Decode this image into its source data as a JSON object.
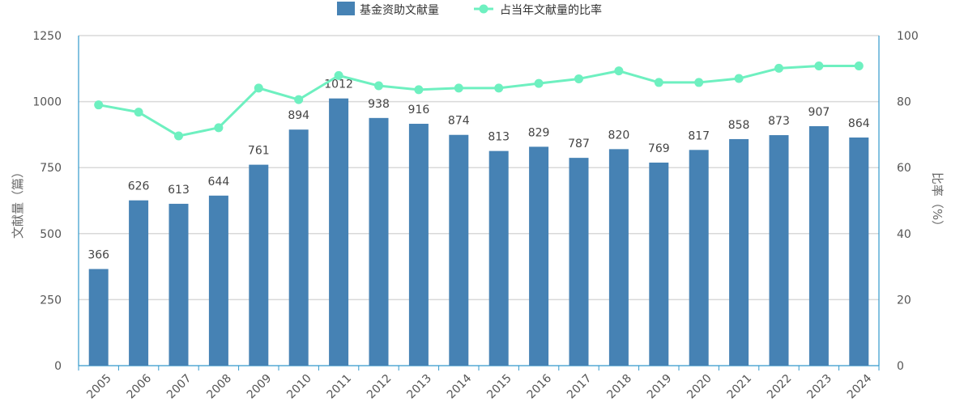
{
  "chart_data": {
    "type": "bar+line",
    "categories": [
      "2005",
      "2006",
      "2007",
      "2008",
      "2009",
      "2010",
      "2011",
      "2012",
      "2013",
      "2014",
      "2015",
      "2016",
      "2017",
      "2018",
      "2019",
      "2020",
      "2021",
      "2022",
      "2023",
      "2024"
    ],
    "series": [
      {
        "name": "基金资助文献量",
        "type": "bar",
        "axis": "left",
        "color": "#4682b4",
        "values": [
          366,
          626,
          613,
          644,
          761,
          894,
          1012,
          938,
          916,
          874,
          813,
          829,
          787,
          820,
          769,
          817,
          858,
          873,
          907,
          864
        ],
        "labels": [
          "366",
          "626",
          "613",
          "644",
          "761",
          "894",
          "1012",
          "938",
          "916",
          "874",
          "813",
          "829",
          "787",
          "820",
          "769",
          "817",
          "858",
          "873",
          "907",
          "864"
        ]
      },
      {
        "name": "占当年文献量的比率",
        "type": "line",
        "axis": "right",
        "color": "#6ef0c0",
        "values": [
          79,
          76.8,
          69.6,
          72.1,
          84.1,
          80.6,
          87.9,
          84.8,
          83.6,
          84.1,
          84.1,
          85.5,
          86.9,
          89.3,
          85.8,
          85.8,
          87.0,
          90.1,
          90.8,
          90.8
        ]
      }
    ],
    "y_left": {
      "label": "文献量（篇）",
      "ylim": [
        0,
        1250
      ],
      "ticks": [
        "0",
        "250",
        "500",
        "750",
        "1000",
        "1250"
      ],
      "tick_values": [
        0,
        250,
        500,
        750,
        1000,
        1250
      ]
    },
    "y_right": {
      "label": "比率（%）",
      "ylim": [
        0,
        100
      ],
      "ticks": [
        "0",
        "20",
        "40",
        "60",
        "80",
        "100"
      ],
      "tick_values": [
        0,
        20,
        40,
        60,
        80,
        100
      ]
    },
    "grid": true,
    "legend_position": "top-center",
    "axis_color": "#3399cc",
    "grid_color": "#d9d9d9"
  }
}
